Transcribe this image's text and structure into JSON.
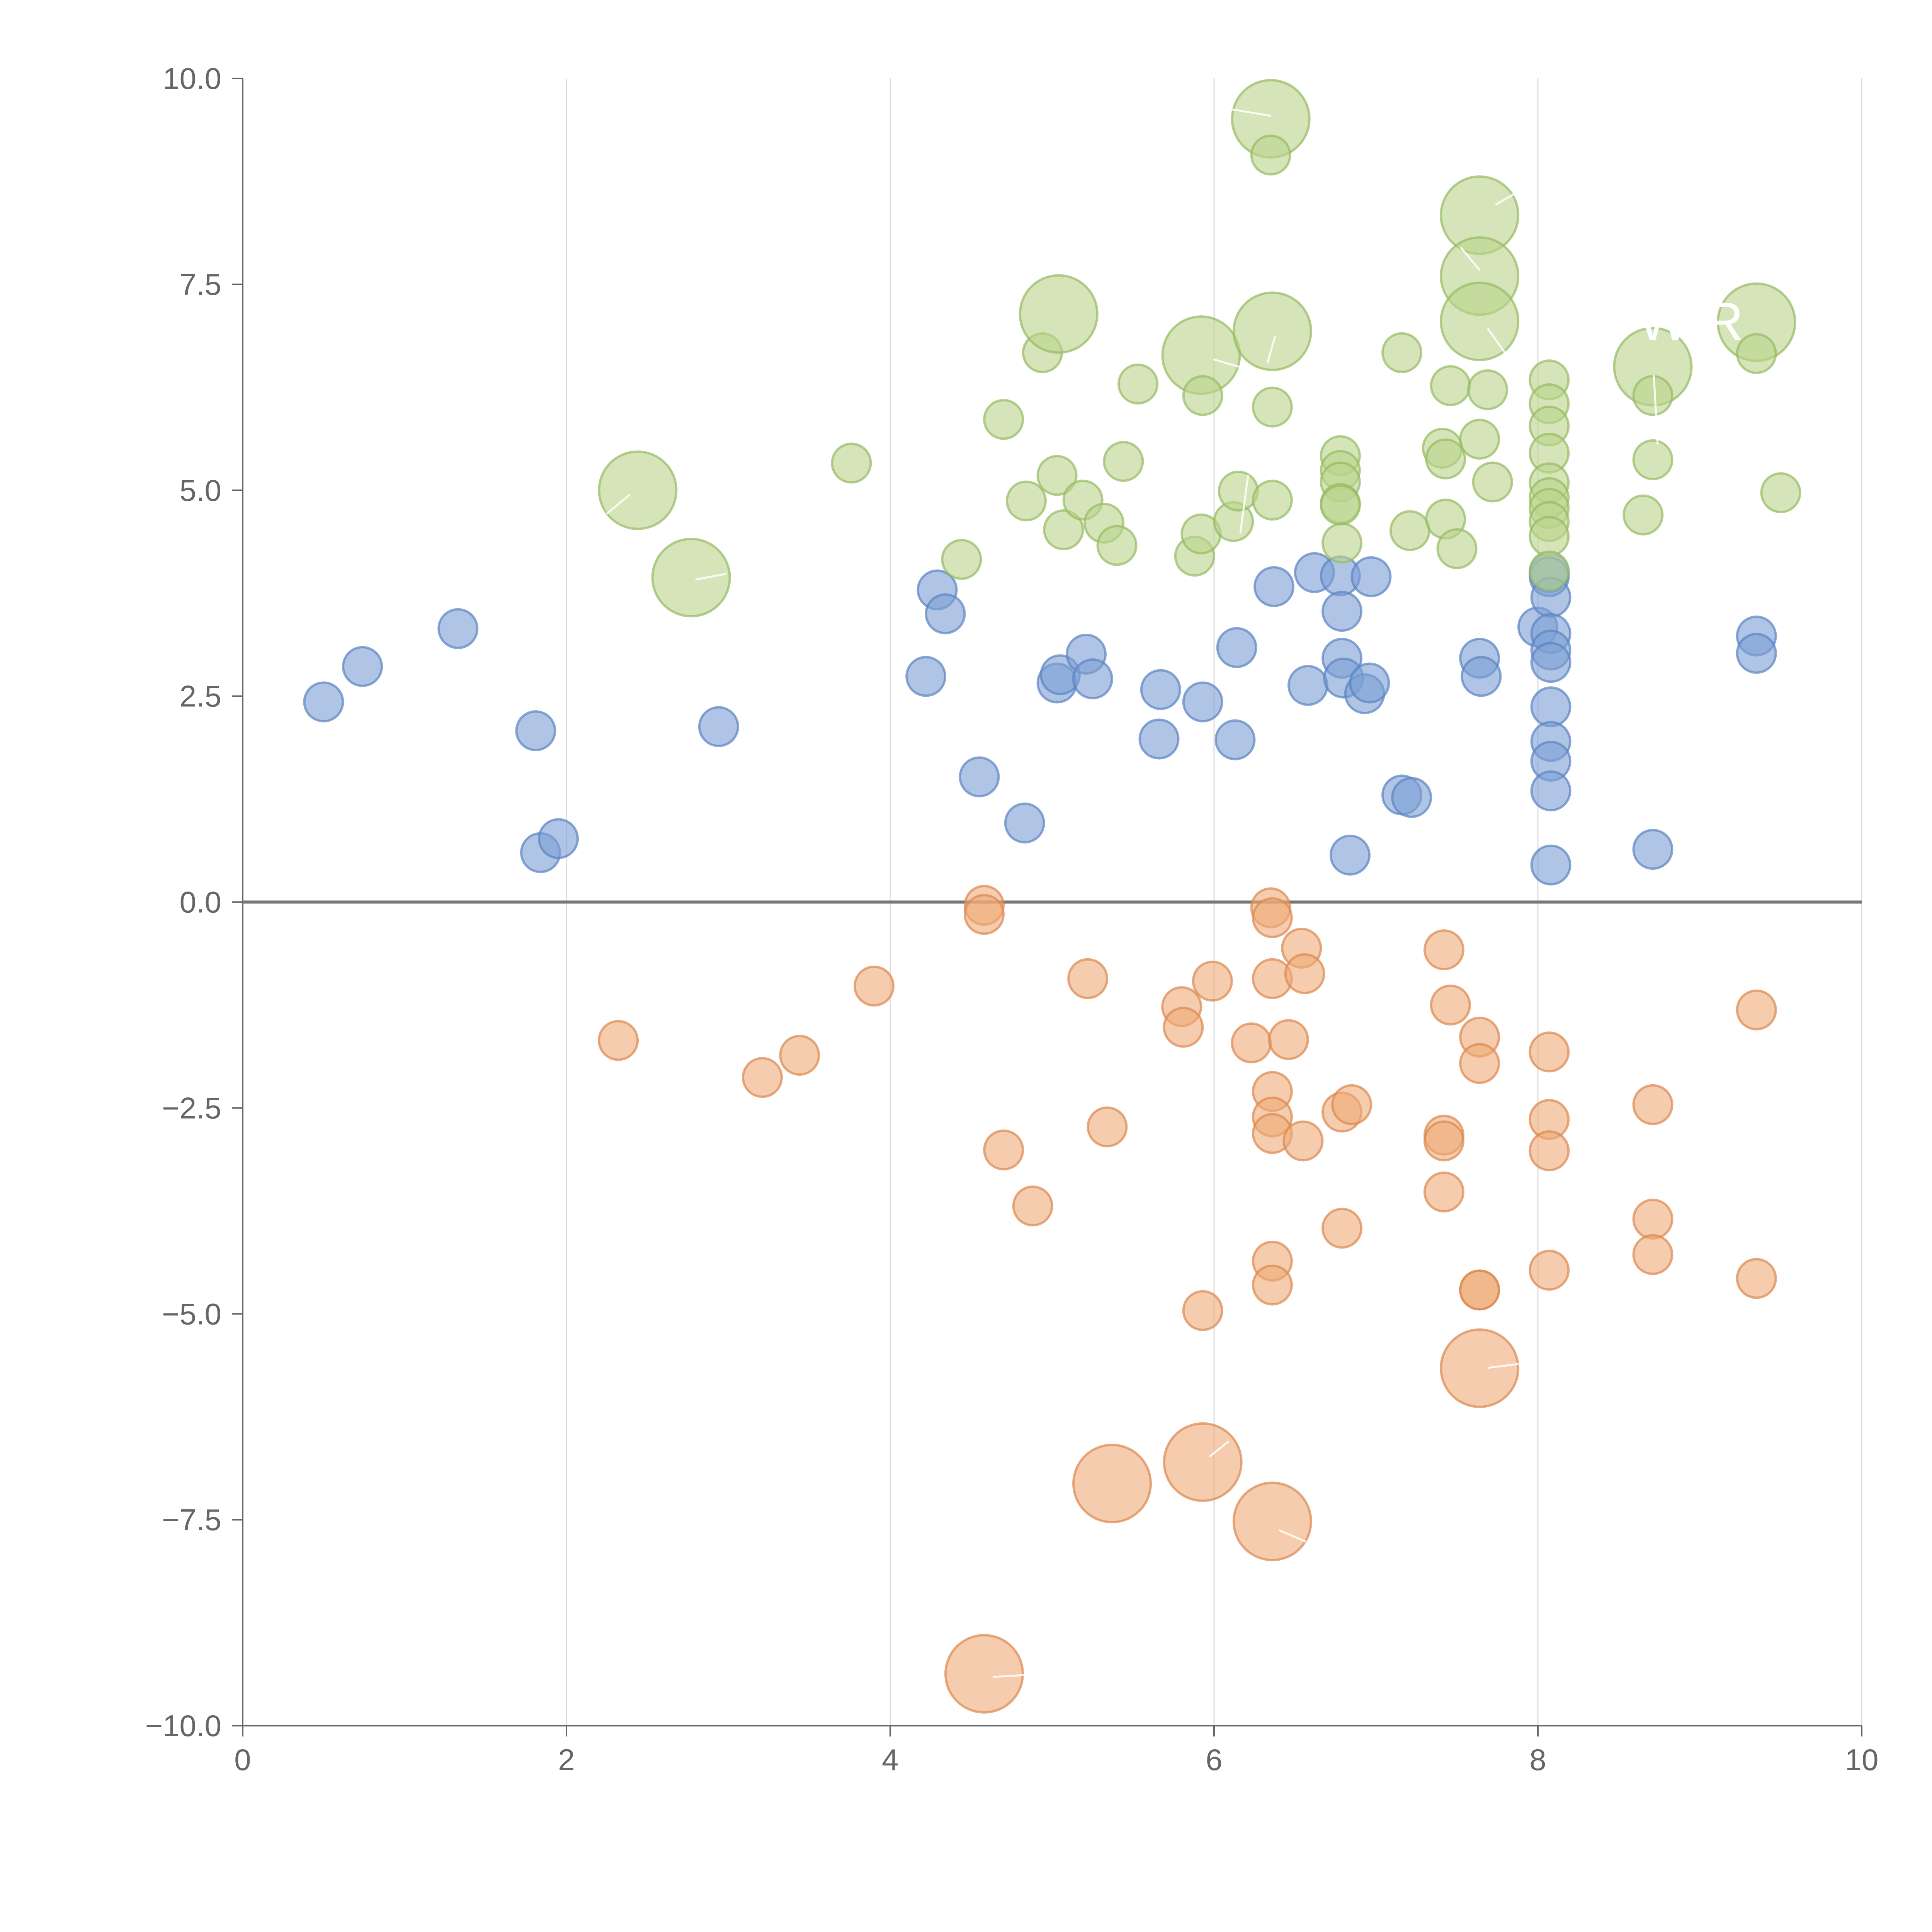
{
  "chart_data": {
    "type": "scatter",
    "title": "",
    "xlabel": "",
    "ylabel": "",
    "xlim": [
      0,
      10
    ],
    "ylim": [
      -10,
      10
    ],
    "xticks": [
      0,
      2,
      4,
      6,
      8,
      10
    ],
    "yticks": [
      -10,
      -7.5,
      -5,
      -2.5,
      0,
      2.5,
      5,
      7.5,
      10
    ],
    "xtick_labels": [
      "0",
      "2",
      "4",
      "6",
      "8",
      "10"
    ],
    "ytick_labels": [
      "−10.0",
      "−7.5",
      "−5.0",
      "−2.5",
      "0.0",
      "2.5",
      "5.0",
      "7.5",
      "10.0"
    ],
    "grid": "vertical",
    "zero_line": true,
    "legend": "none",
    "series": [
      {
        "name": "blue",
        "color": "#7b9fd4",
        "stroke": "#5b83c2",
        "points": [
          [
            0.5,
            2.43
          ],
          [
            0.74,
            2.86
          ],
          [
            1.33,
            3.32
          ],
          [
            1.81,
            2.08
          ],
          [
            1.84,
            0.6
          ],
          [
            1.95,
            0.77
          ],
          [
            2.94,
            2.13
          ],
          [
            4.22,
            2.74
          ],
          [
            4.29,
            3.79
          ],
          [
            4.34,
            3.5
          ],
          [
            4.55,
            1.52
          ],
          [
            4.83,
            0.96
          ],
          [
            5.03,
            2.66
          ],
          [
            5.05,
            2.76
          ],
          [
            5.21,
            3.01
          ],
          [
            5.25,
            2.71
          ],
          [
            5.66,
            1.98
          ],
          [
            5.67,
            2.58
          ],
          [
            5.93,
            2.43
          ],
          [
            6.13,
            1.97
          ],
          [
            6.14,
            3.09
          ],
          [
            6.37,
            3.83
          ],
          [
            6.58,
            2.63
          ],
          [
            6.62,
            4.0
          ],
          [
            6.78,
            3.96
          ],
          [
            6.79,
            3.53
          ],
          [
            6.79,
            2.96
          ],
          [
            6.8,
            2.72
          ],
          [
            6.84,
            0.57
          ],
          [
            6.93,
            2.53
          ],
          [
            6.96,
            2.66
          ],
          [
            6.97,
            3.95
          ],
          [
            7.16,
            1.3
          ],
          [
            7.22,
            1.27
          ],
          [
            7.64,
            2.96
          ],
          [
            7.65,
            2.74
          ],
          [
            8.0,
            3.34
          ],
          [
            8.07,
            4.0
          ],
          [
            8.07,
            3.95
          ],
          [
            8.08,
            3.7
          ],
          [
            8.08,
            3.26
          ],
          [
            8.08,
            3.06
          ],
          [
            8.08,
            2.91
          ],
          [
            8.08,
            2.37
          ],
          [
            8.08,
            1.95
          ],
          [
            8.08,
            1.71
          ],
          [
            8.08,
            1.35
          ],
          [
            8.08,
            0.45
          ],
          [
            8.71,
            0.64
          ],
          [
            9.35,
            3.23
          ],
          [
            9.35,
            3.02
          ]
        ]
      },
      {
        "name": "orange",
        "color": "#eeaa77",
        "stroke": "#dc8850",
        "points": [
          [
            2.32,
            -1.68
          ],
          [
            3.21,
            -2.13
          ],
          [
            3.44,
            -1.86
          ],
          [
            3.9,
            -1.02
          ],
          [
            4.58,
            -0.04
          ],
          [
            4.58,
            -0.15
          ],
          [
            4.58,
            -9.37
          ],
          [
            4.7,
            -3.01
          ],
          [
            4.88,
            -3.69
          ],
          [
            5.22,
            -0.93
          ],
          [
            5.34,
            -2.73
          ],
          [
            5.37,
            -7.06
          ],
          [
            5.8,
            -1.27
          ],
          [
            5.81,
            -1.52
          ],
          [
            5.93,
            -4.96
          ],
          [
            5.93,
            -6.8
          ],
          [
            5.99,
            -0.96
          ],
          [
            6.23,
            -1.71
          ],
          [
            6.35,
            -0.07
          ],
          [
            6.36,
            -0.19
          ],
          [
            6.36,
            -0.93
          ],
          [
            6.36,
            -2.3
          ],
          [
            6.36,
            -2.61
          ],
          [
            6.36,
            -2.81
          ],
          [
            6.36,
            -4.36
          ],
          [
            6.36,
            -4.65
          ],
          [
            6.36,
            -7.52
          ],
          [
            6.46,
            -1.67
          ],
          [
            6.54,
            -0.56
          ],
          [
            6.56,
            -0.87
          ],
          [
            6.55,
            -2.9
          ],
          [
            6.79,
            -2.55
          ],
          [
            6.85,
            -2.46
          ],
          [
            6.79,
            -3.96
          ],
          [
            7.42,
            -0.58
          ],
          [
            7.46,
            -1.25
          ],
          [
            7.42,
            -2.83
          ],
          [
            7.42,
            -2.9
          ],
          [
            7.42,
            -3.52
          ],
          [
            7.64,
            -1.64
          ],
          [
            7.64,
            -1.96
          ],
          [
            7.64,
            -4.71
          ],
          [
            7.64,
            -4.71
          ],
          [
            7.64,
            -5.66
          ],
          [
            8.07,
            -1.82
          ],
          [
            8.07,
            -2.64
          ],
          [
            8.07,
            -3.02
          ],
          [
            8.07,
            -4.47
          ],
          [
            8.71,
            -2.46
          ],
          [
            8.71,
            -3.85
          ],
          [
            8.71,
            -4.28
          ],
          [
            9.35,
            -1.31
          ],
          [
            9.35,
            -4.57
          ]
        ]
      },
      {
        "name": "green",
        "color": "#b9d38a",
        "stroke": "#96ba62",
        "points": [
          [
            2.44,
            5.0
          ],
          [
            2.77,
            3.94
          ],
          [
            3.76,
            5.33
          ],
          [
            4.44,
            4.16
          ],
          [
            4.7,
            5.86
          ],
          [
            4.84,
            4.87
          ],
          [
            4.94,
            6.67
          ],
          [
            5.03,
            5.18
          ],
          [
            5.04,
            7.14
          ],
          [
            5.07,
            4.52
          ],
          [
            5.19,
            4.88
          ],
          [
            5.32,
            4.6
          ],
          [
            5.4,
            4.33
          ],
          [
            5.44,
            5.35
          ],
          [
            5.53,
            6.29
          ],
          [
            5.88,
            4.2
          ],
          [
            5.92,
            6.64
          ],
          [
            5.92,
            4.47
          ],
          [
            5.93,
            6.15
          ],
          [
            6.12,
            4.62
          ],
          [
            6.15,
            4.99
          ],
          [
            6.35,
            9.51
          ],
          [
            6.35,
            9.07
          ],
          [
            6.36,
            6.93
          ],
          [
            6.36,
            6.01
          ],
          [
            6.36,
            4.88
          ],
          [
            6.78,
            5.42
          ],
          [
            6.78,
            5.24
          ],
          [
            6.78,
            5.1
          ],
          [
            6.78,
            4.84
          ],
          [
            6.78,
            4.82
          ],
          [
            6.79,
            4.36
          ],
          [
            7.16,
            6.67
          ],
          [
            7.21,
            4.51
          ],
          [
            7.41,
            5.51
          ],
          [
            7.43,
            5.38
          ],
          [
            7.43,
            4.65
          ],
          [
            7.46,
            6.27
          ],
          [
            7.5,
            4.29
          ],
          [
            7.64,
            8.34
          ],
          [
            7.64,
            7.6
          ],
          [
            7.64,
            7.05
          ],
          [
            7.64,
            5.62
          ],
          [
            7.69,
            6.22
          ],
          [
            7.72,
            5.1
          ],
          [
            8.07,
            6.34
          ],
          [
            8.07,
            6.05
          ],
          [
            8.07,
            5.78
          ],
          [
            8.07,
            5.45
          ],
          [
            8.07,
            5.09
          ],
          [
            8.07,
            4.91
          ],
          [
            8.07,
            4.78
          ],
          [
            8.07,
            4.62
          ],
          [
            8.07,
            4.44
          ],
          [
            8.07,
            4.02
          ],
          [
            8.65,
            4.7
          ],
          [
            8.71,
            6.5
          ],
          [
            8.71,
            6.15
          ],
          [
            8.71,
            5.37
          ],
          [
            9.35,
            7.04
          ],
          [
            9.35,
            6.66
          ],
          [
            9.5,
            4.97
          ]
        ]
      }
    ]
  }
}
